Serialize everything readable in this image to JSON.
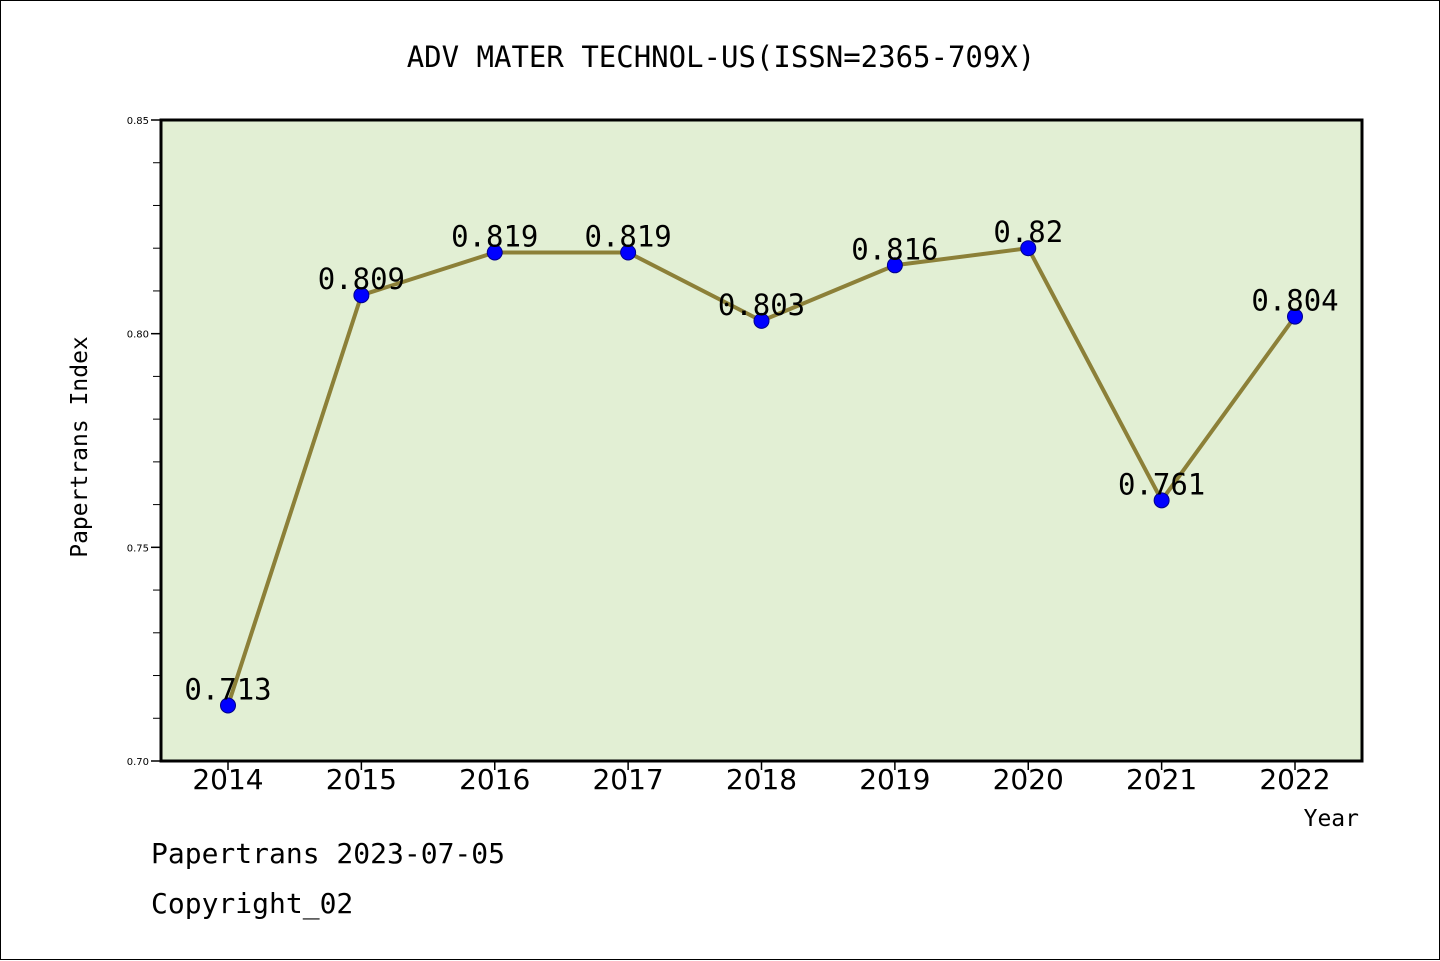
{
  "chart_data": {
    "type": "line",
    "title": "ADV MATER TECHNOL-US(ISSN=2365-709X)",
    "xlabel": "Year",
    "ylabel": "Papertrans Index",
    "categories": [
      "2014",
      "2015",
      "2016",
      "2017",
      "2018",
      "2019",
      "2020",
      "2021",
      "2022"
    ],
    "values": [
      0.713,
      0.809,
      0.819,
      0.819,
      0.803,
      0.816,
      0.82,
      0.761,
      0.804
    ],
    "data_labels": [
      "0.713",
      "0.809",
      "0.819",
      "0.819",
      "0.803",
      "0.816",
      "0.82",
      "0.761",
      "0.804"
    ],
    "ylim": [
      0.7,
      0.85
    ],
    "y_ticks": [
      0.7,
      0.75,
      0.8,
      0.85
    ],
    "y_tick_labels": [
      "0.70",
      "0.75",
      "0.80",
      "0.85"
    ],
    "y_minor_step": 0.01,
    "grid": false,
    "colors": {
      "plot_background": "#e2efd4",
      "line": "#8c8038",
      "marker": "#0000ff",
      "marker_edge": "#00008b",
      "axis": "#000000"
    }
  },
  "footer": {
    "source_line": "Papertrans 2023-07-05",
    "copyright": "Copyright_02"
  }
}
